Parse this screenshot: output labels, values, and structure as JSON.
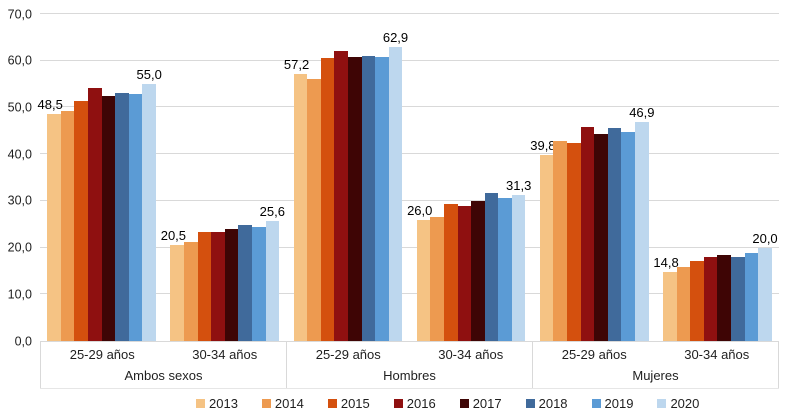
{
  "chart_data": {
    "type": "bar",
    "title": "",
    "xlabel": "",
    "ylabel": "",
    "grid": true,
    "legend_position": "bottom",
    "decimal_separator": ",",
    "y_axis": {
      "min": 0,
      "max": 70,
      "step": 10,
      "tick_labels": [
        "0,0",
        "10,0",
        "20,0",
        "30,0",
        "40,0",
        "50,0",
        "60,0",
        "70,0"
      ]
    },
    "series": [
      {
        "name": "2013",
        "color": "#F5C384"
      },
      {
        "name": "2014",
        "color": "#ED9A50"
      },
      {
        "name": "2015",
        "color": "#D4500E"
      },
      {
        "name": "2016",
        "color": "#8F1010"
      },
      {
        "name": "2017",
        "color": "#3E0505"
      },
      {
        "name": "2018",
        "color": "#406A9B"
      },
      {
        "name": "2019",
        "color": "#5B9BD5"
      },
      {
        "name": "2020",
        "color": "#BDD7EE"
      }
    ],
    "category_groups": [
      {
        "label": "Ambos sexos",
        "subgroups": [
          {
            "label": "25-29 años",
            "values": [
              48.5,
              49.2,
              51.4,
              54.1,
              52.5,
              53.1,
              52.8,
              55.0
            ],
            "shown_labels": {
              "first": "48,5",
              "last": "55,0"
            }
          },
          {
            "label": "30-34 años",
            "values": [
              20.5,
              21.2,
              23.3,
              23.4,
              23.9,
              24.8,
              24.3,
              25.6
            ],
            "shown_labels": {
              "first": "20,5",
              "last": "25,6"
            }
          }
        ]
      },
      {
        "label": "Hombres",
        "subgroups": [
          {
            "label": "25-29 años",
            "values": [
              57.2,
              56.1,
              60.5,
              62.0,
              60.7,
              61.0,
              60.8,
              62.9
            ],
            "shown_labels": {
              "first": "57,2",
              "last": "62,9"
            }
          },
          {
            "label": "30-34 años",
            "values": [
              26.0,
              26.5,
              29.4,
              28.8,
              30.0,
              31.7,
              30.6,
              31.3
            ],
            "shown_labels": {
              "first": "26,0",
              "last": "31,3"
            }
          }
        ]
      },
      {
        "label": "Mujeres",
        "subgroups": [
          {
            "label": "25-29 años",
            "values": [
              39.8,
              42.9,
              42.4,
              45.9,
              44.4,
              45.6,
              44.7,
              46.9
            ],
            "shown_labels": {
              "first": "39,8",
              "last": "46,9"
            }
          },
          {
            "label": "30-34 años",
            "values": [
              14.8,
              15.9,
              17.1,
              17.9,
              18.4,
              17.9,
              18.8,
              20.0
            ],
            "shown_labels": {
              "first": "14,8",
              "last": "20,0"
            }
          }
        ]
      }
    ],
    "style_colors": {
      "gridline": "#D9D9D9",
      "axis_text": "#1F1F1F",
      "data_label_text": "#000000"
    }
  }
}
